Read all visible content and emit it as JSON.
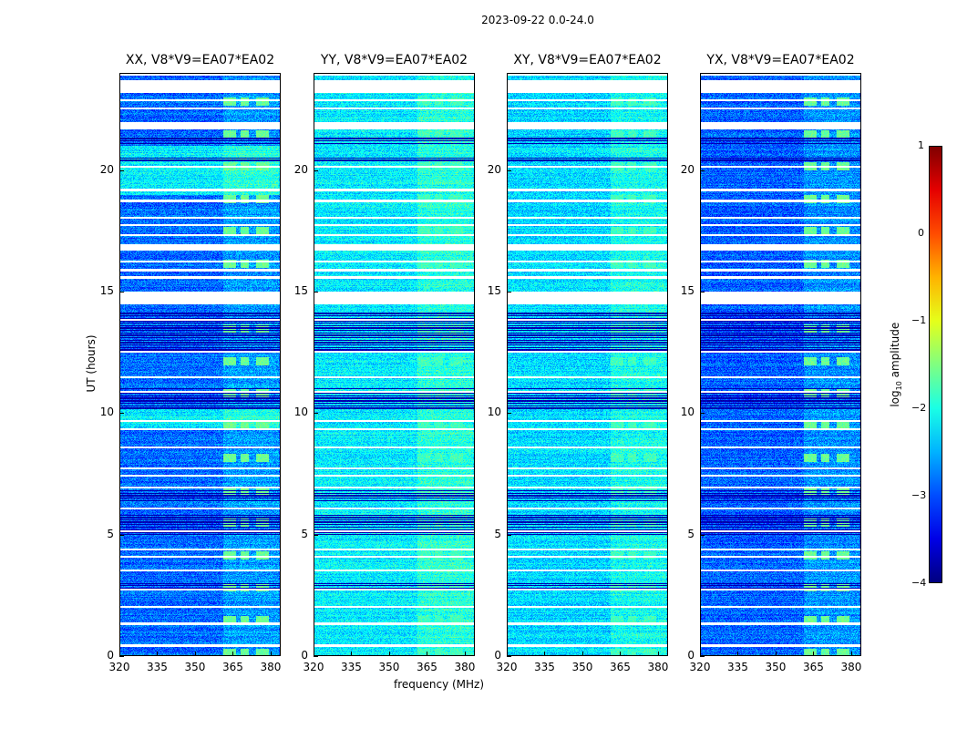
{
  "suptitle": "2023-09-22 0.0-24.0",
  "chart_data": {
    "type": "heatmap",
    "xlabel": "frequency (MHz)",
    "ylabel": "UT (hours)",
    "xlim": [
      320,
      384
    ],
    "ylim": [
      0,
      24
    ],
    "xticks": [
      "320",
      "335",
      "350",
      "365",
      "380"
    ],
    "yticks": [
      "0",
      "5",
      "10",
      "15",
      "20"
    ],
    "xtick_values": [
      320,
      335,
      350,
      365,
      380
    ],
    "ytick_values": [
      0,
      5,
      10,
      15,
      20
    ],
    "colormap": "jet",
    "colorbar": {
      "label_main": "log",
      "label_sub": "10",
      "label_rest": " amplitude",
      "range": [
        -4,
        1
      ],
      "ticks": [
        "1",
        "0",
        "−1",
        "−2",
        "−3",
        "−4"
      ],
      "tick_values": [
        1,
        0,
        -1,
        -2,
        -3,
        -4
      ]
    },
    "flagged_gaps_hours": [
      [
        23.2,
        23.7
      ],
      [
        21.7,
        21.98
      ],
      [
        16.7,
        16.95
      ],
      [
        14.5,
        15.0
      ]
    ],
    "flagged_lines_hours": [
      0.45,
      1.35,
      2.05,
      2.75,
      3.55,
      4.1,
      4.4,
      5.15,
      6.1,
      6.95,
      7.45,
      7.75,
      8.6,
      9.35,
      9.7,
      10.9,
      11.5,
      12.55,
      13.85,
      15.6,
      15.9,
      16.25,
      17.35,
      17.75,
      18.05,
      18.75,
      19.2,
      20.15,
      22.55,
      22.9,
      23.95
    ],
    "low_rows_hours": [
      [
        10.2,
        11.1
      ],
      [
        12.6,
        14.2
      ],
      [
        5.0,
        5.9
      ],
      [
        6.4,
        6.9
      ],
      [
        2.8,
        3.0
      ],
      [
        20.4,
        20.6
      ],
      [
        21.1,
        21.4
      ]
    ],
    "rfi_bands_mhz": [
      [
        361,
        366
      ],
      [
        368,
        371
      ],
      [
        374,
        379
      ]
    ],
    "panels": [
      {
        "title": "XX, V8*V9=EA07*EA02",
        "base_level": -2.85,
        "bright_hours": [
          [
            19.0,
            21.0
          ],
          [
            9.4,
            10.2
          ]
        ],
        "bright_level": -2.2,
        "rfi_level": -1.6
      },
      {
        "title": "YY, V8*V9=EA07*EA02",
        "base_level": -2.2,
        "bright_hours": [],
        "bright_level": -2.0,
        "rfi_level": -1.8
      },
      {
        "title": "XY, V8*V9=EA07*EA02",
        "base_level": -2.3,
        "bright_hours": [],
        "bright_level": -2.1,
        "rfi_level": -1.8
      },
      {
        "title": "YX, V8*V9=EA07*EA02",
        "base_level": -2.9,
        "bright_hours": [],
        "bright_level": -2.6,
        "rfi_level": -1.6
      }
    ]
  }
}
